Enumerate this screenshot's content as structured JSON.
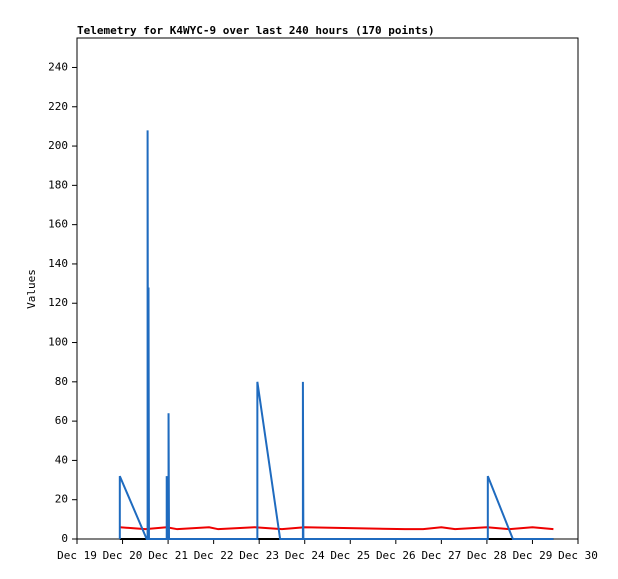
{
  "chart_data": {
    "type": "line",
    "title": "Telemetry for K4WYC-9 over last 240 hours (170 points)",
    "y_label": "Values",
    "xlim": [
      0,
      11
    ],
    "xticks": [
      {
        "value": 0,
        "label": "Dec 19"
      },
      {
        "value": 1,
        "label": "Dec 20"
      },
      {
        "value": 2,
        "label": "Dec 21"
      },
      {
        "value": 3,
        "label": "Dec 22"
      },
      {
        "value": 4,
        "label": "Dec 23"
      },
      {
        "value": 5,
        "label": "Dec 24"
      },
      {
        "value": 6,
        "label": "Dec 25"
      },
      {
        "value": 7,
        "label": "Dec 26"
      },
      {
        "value": 8,
        "label": "Dec 27"
      },
      {
        "value": 9,
        "label": "Dec 28"
      },
      {
        "value": 10,
        "label": "Dec 29"
      },
      {
        "value": 11,
        "label": "Dec 30"
      }
    ],
    "ylim": [
      0,
      255
    ],
    "yticks": [
      0,
      20,
      40,
      60,
      80,
      100,
      120,
      140,
      160,
      180,
      200,
      220,
      240
    ],
    "series": [
      {
        "color": "#000000",
        "x": [
          0.94,
          10.46
        ],
        "values": [
          0,
          0
        ]
      },
      {
        "color": "#ee0000",
        "x": [
          0.94,
          1.5,
          1.97,
          2.2,
          2.9,
          3.1,
          3.9,
          4.5,
          5.0,
          7.2,
          7.6,
          8.0,
          8.3,
          9.0,
          9.5,
          10.0,
          10.46
        ],
        "values": [
          6,
          5,
          6,
          5,
          6,
          5,
          6,
          5,
          6,
          5,
          5,
          6,
          5,
          6,
          5,
          6,
          5
        ]
      },
      {
        "color": "#1f6bbf",
        "x": [
          0.94,
          0.94,
          1.53,
          1.55,
          1.55,
          1.56,
          1.57,
          1.58,
          1.97,
          1.97,
          1.99,
          2.01,
          2.01,
          2.02,
          3.96,
          3.96,
          4.46,
          4.96,
          4.96,
          4.97,
          9.02,
          9.02,
          9.57,
          10.46
        ],
        "values": [
          0,
          32,
          0,
          0,
          208,
          0,
          128,
          0,
          0,
          32,
          0,
          0,
          64,
          0,
          0,
          80,
          0,
          0,
          80,
          0,
          0,
          32,
          0,
          0
        ]
      }
    ]
  }
}
